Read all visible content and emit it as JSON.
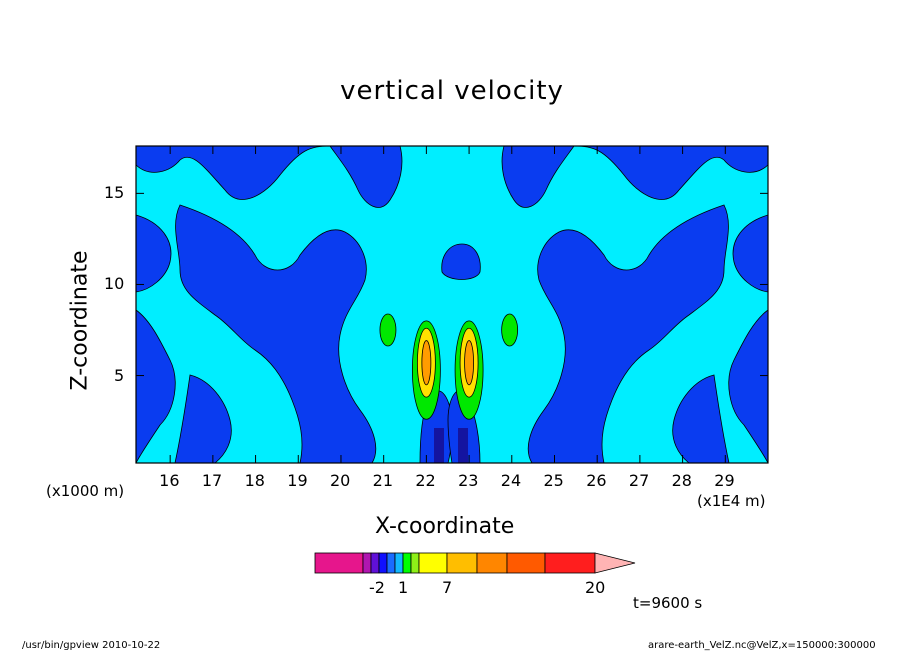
{
  "chart_data": {
    "type": "heatmap",
    "title": "vertical velocity",
    "xlabel": "X-coordinate",
    "ylabel": "Z-coordinate",
    "x_unit_left": "(x1000 m)",
    "x_unit_right": "(x1E4 m)",
    "x_ticks": [
      "16",
      "17",
      "18",
      "19",
      "20",
      "21",
      "22",
      "23",
      "24",
      "25",
      "26",
      "27",
      "28",
      "29"
    ],
    "y_ticks": [
      "5",
      "10",
      "15"
    ],
    "xlim": [
      15.2,
      30.0
    ],
    "ylim": [
      0.2,
      17.6
    ],
    "time_label": "t=9600 s",
    "colorbar": {
      "labels": [
        {
          "text": "-2",
          "box": 2
        },
        {
          "text": "1",
          "box": 5
        },
        {
          "text": "7",
          "box": 8
        },
        {
          "text": "20",
          "box": 12
        }
      ],
      "colors": [
        "#e6168c",
        "#b016b0",
        "#6010d8",
        "#1010ff",
        "#1a6cff",
        "#12b8ff",
        "#00ff00",
        "#8ef018",
        "#ffff00",
        "#ffbe00",
        "#ff8600",
        "#ff5a00",
        "#ff1e1e",
        "#ff7070",
        "#ffb4b4"
      ]
    },
    "regions": {
      "cyan": "#00eeff",
      "blue": "#0a3cf0",
      "darkblue": "#1414a0",
      "green": "#00e800",
      "yellow": "#ffe000",
      "orange": "#ff9c00"
    },
    "vertical_cores": [
      {
        "x": 22.0,
        "z_bottom": 2.6,
        "z_top": 8.0
      },
      {
        "x": 23.0,
        "z_bottom": 2.6,
        "z_top": 8.0
      }
    ],
    "side_cores": [
      {
        "x": 21.1,
        "z": 7.5
      },
      {
        "x": 23.95,
        "z": 7.5
      }
    ]
  },
  "footer": {
    "left": "/usr/bin/gpview   2010-10-22",
    "right": "arare-earth_VelZ.nc@VelZ,x=150000:300000"
  }
}
